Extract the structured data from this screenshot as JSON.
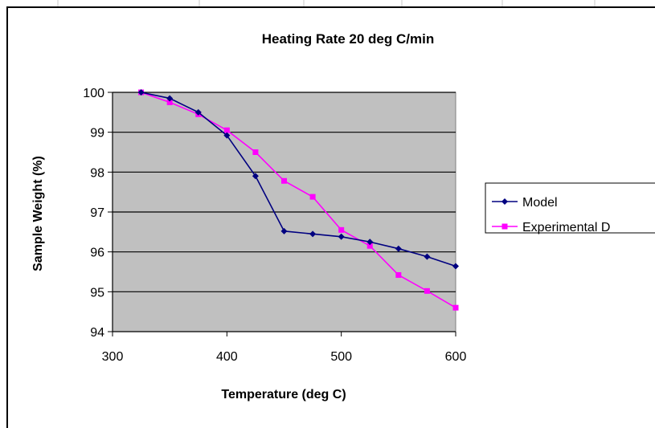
{
  "chart_data": {
    "type": "line",
    "title": "Heating Rate 20 deg C/min",
    "xlabel": "Temperature (deg C)",
    "ylabel": "Sample Weight (%)",
    "xlim": [
      300,
      600
    ],
    "ylim": [
      94,
      100
    ],
    "xticks": [
      300,
      400,
      500,
      600
    ],
    "yticks": [
      94,
      95,
      96,
      97,
      98,
      99,
      100
    ],
    "grid": "horizontal",
    "plot_background": "#c0c0c0",
    "legend": "right",
    "series": [
      {
        "name": "Model",
        "color": "#000080",
        "marker": "diamond",
        "x": [
          325,
          350,
          375,
          400,
          425,
          450,
          475,
          500,
          525,
          550,
          575,
          600
        ],
        "y": [
          100.0,
          99.85,
          99.5,
          98.92,
          97.9,
          96.52,
          96.45,
          96.38,
          96.25,
          96.08,
          95.88,
          95.64
        ]
      },
      {
        "name": "Experimental D",
        "color": "#ff00ff",
        "marker": "square",
        "x": [
          325,
          350,
          375,
          400,
          425,
          450,
          475,
          500,
          525,
          550,
          575,
          600
        ],
        "y": [
          100.0,
          99.75,
          99.45,
          99.05,
          98.5,
          97.78,
          97.38,
          96.55,
          96.15,
          95.42,
          95.02,
          94.6
        ]
      }
    ]
  }
}
